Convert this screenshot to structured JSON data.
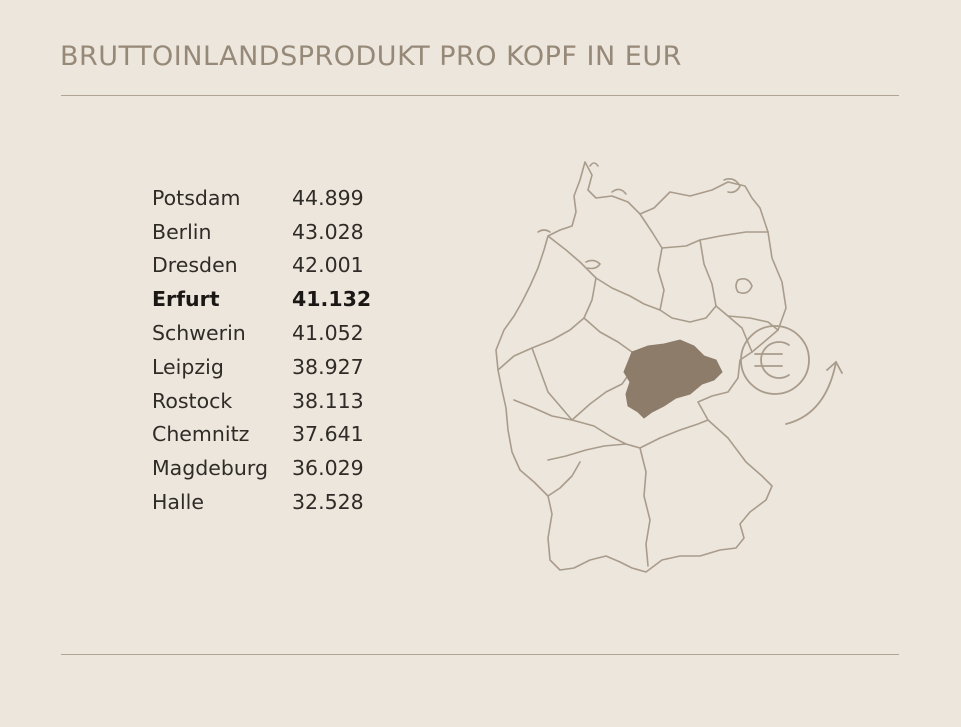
{
  "title": "BRUTTOINLANDSPRODUKT  PRO KOPF IN EUR",
  "cities": [
    {
      "name": "Potsdam",
      "value": "44.899",
      "highlight": false
    },
    {
      "name": "Berlin",
      "value": "43.028",
      "highlight": false
    },
    {
      "name": "Dresden",
      "value": "42.001",
      "highlight": false
    },
    {
      "name": "Erfurt",
      "value": "41.132",
      "highlight": true
    },
    {
      "name": "Schwerin",
      "value": "41.052",
      "highlight": false
    },
    {
      "name": "Leipzig",
      "value": "38.927",
      "highlight": false
    },
    {
      "name": "Rostock",
      "value": "38.113",
      "highlight": false
    },
    {
      "name": "Chemnitz",
      "value": "37.641",
      "highlight": false
    },
    {
      "name": "Magdeburg",
      "value": "36.029",
      "highlight": false
    },
    {
      "name": "Halle",
      "value": "32.528",
      "highlight": false
    }
  ],
  "colors": {
    "background": "#ede6dd",
    "title": "#968978",
    "rule": "#b0a493",
    "map_outline": "#a99c8b",
    "highlight_region": "#8c7c69",
    "text": "#2f2b27"
  },
  "map": {
    "highlighted_region": "Thüringen",
    "icon": "euro-cycle-icon"
  }
}
